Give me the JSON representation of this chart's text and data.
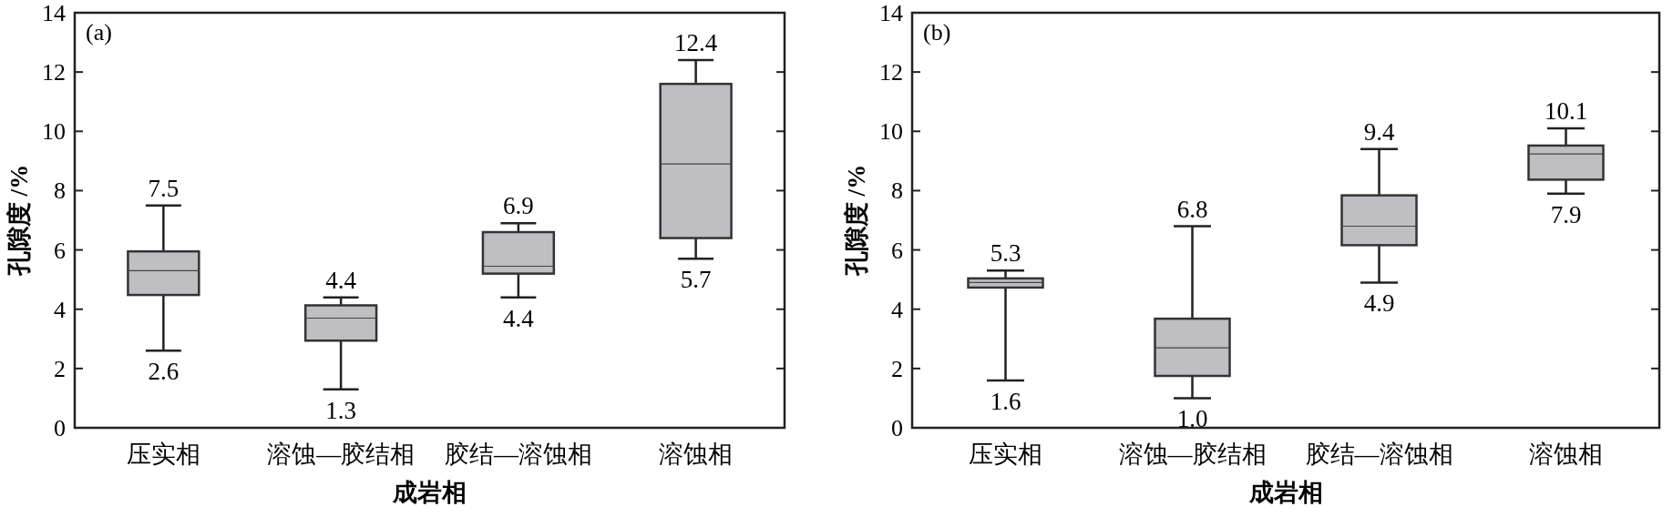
{
  "chart_data": [
    {
      "type": "box",
      "xlabel": "成岩相",
      "ylabel": "孔隙度 /%",
      "categories": [
        "压实相",
        "溶蚀—胶结相",
        "胶结—溶蚀相",
        "溶蚀相"
      ],
      "ylim": [
        0,
        14
      ],
      "yticks": [
        0,
        2,
        4,
        6,
        8,
        10,
        12,
        14
      ],
      "series": [
        {
          "color": "#bebec3",
          "boxes": [
            {
              "low": 2.6,
              "q1": 4.48,
              "median": 5.3,
              "q3": 5.95,
              "high": 7.5
            },
            {
              "low": 1.3,
              "q1": 2.94,
              "median": 3.7,
              "q3": 4.13,
              "high": 4.4
            },
            {
              "low": 4.4,
              "q1": 5.2,
              "median": 5.45,
              "q3": 6.6,
              "high": 6.9
            },
            {
              "low": 5.7,
              "q1": 6.4,
              "median": 8.9,
              "q3": 11.6,
              "high": 12.4
            }
          ]
        }
      ],
      "annotations": [
        "(a)",
        {
          "text": "7.5",
          "x": "压实相",
          "y": 7.5
        },
        {
          "text": "2.6",
          "x": "压实相",
          "y": 2.6
        },
        {
          "text": "4.4",
          "x": "溶蚀—胶结相",
          "y": 4.4
        },
        {
          "text": "1.3",
          "x": "溶蚀—胶结相",
          "y": 1.3
        },
        {
          "text": "6.9",
          "x": "胶结—溶蚀相",
          "y": 6.9
        },
        {
          "text": "4.4",
          "x": "胶结—溶蚀相",
          "y": 4.4
        },
        {
          "text": "12.4",
          "x": "溶蚀相",
          "y": 12.4
        },
        {
          "text": "5.7",
          "x": "溶蚀相",
          "y": 5.7
        }
      ]
    },
    {
      "type": "box",
      "xlabel": "成岩相",
      "ylabel": "孔隙度 /%",
      "categories": [
        "压实相",
        "溶蚀—胶结相",
        "胶结—溶蚀相",
        "溶蚀相"
      ],
      "ylim": [
        0,
        14
      ],
      "yticks": [
        0,
        2,
        4,
        6,
        8,
        10,
        12,
        14
      ],
      "series": [
        {
          "color": "#bebec3",
          "boxes": [
            {
              "low": 1.6,
              "q1": 4.73,
              "median": 4.9,
              "q3": 5.04,
              "high": 5.3
            },
            {
              "low": 1.0,
              "q1": 1.75,
              "median": 2.7,
              "q3": 3.68,
              "high": 6.8
            },
            {
              "low": 4.9,
              "q1": 6.16,
              "median": 6.8,
              "q3": 7.84,
              "high": 9.4
            },
            {
              "low": 7.9,
              "q1": 8.37,
              "median": 9.24,
              "q3": 9.52,
              "high": 10.1
            }
          ]
        }
      ],
      "annotations": [
        "(b)",
        {
          "text": "5.3",
          "x": "压实相",
          "y": 5.3
        },
        {
          "text": "1.6",
          "x": "压实相",
          "y": 1.6
        },
        {
          "text": "6.8",
          "x": "溶蚀—胶结相",
          "y": 6.8
        },
        {
          "text": "1.0",
          "x": "溶蚀—胶结相",
          "y": 1.0
        },
        {
          "text": "9.4",
          "x": "胶结—溶蚀相",
          "y": 9.4
        },
        {
          "text": "4.9",
          "x": "胶结—溶蚀相",
          "y": 4.9
        },
        {
          "text": "10.1",
          "x": "溶蚀相",
          "y": 10.1
        },
        {
          "text": "7.9",
          "x": "溶蚀相",
          "y": 7.9
        }
      ]
    }
  ]
}
